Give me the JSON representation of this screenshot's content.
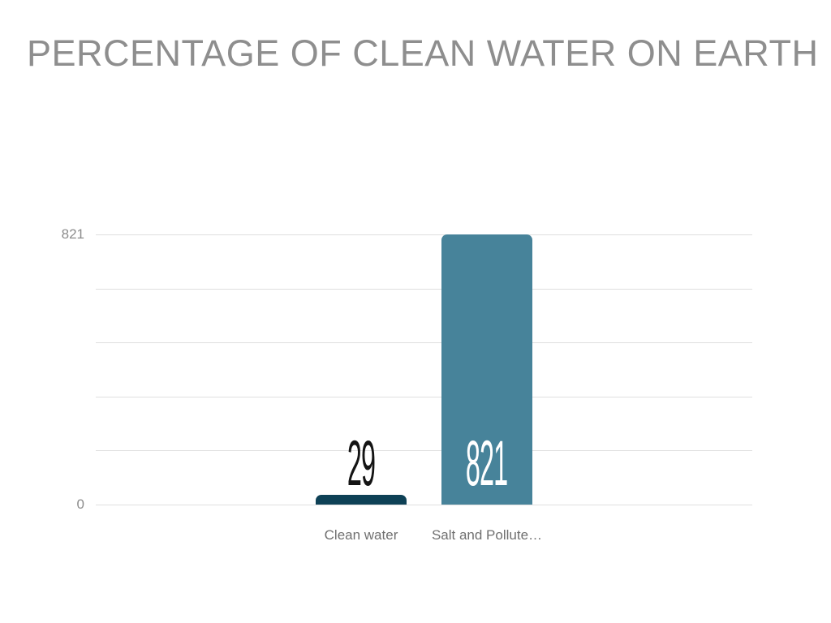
{
  "header": {
    "title": "PERCENTAGE OF CLEAN WATER ON EARTH",
    "title_color": "#8e8e8e"
  },
  "chart_data": {
    "type": "bar",
    "title": "PERCENTAGE OF CLEAN WATER ON EARTH",
    "categories": [
      "Clean water",
      "Salt and Pollute…"
    ],
    "values": [
      29,
      821
    ],
    "value_labels": [
      "29",
      "821"
    ],
    "bar_colors": [
      "#0e4156",
      "#47839a"
    ],
    "value_label_colors": [
      "#141414",
      "#ffffff"
    ],
    "y_ticks": [
      {
        "value": 821,
        "label": "821"
      },
      {
        "value": 0,
        "label": "0"
      }
    ],
    "ylim": [
      0,
      821
    ],
    "gridline_count": 6,
    "grid": true,
    "gridline_color": "#dfdfdf",
    "legend": "none",
    "xlabel": "",
    "ylabel": "",
    "tick_label_color": "#8c8c8c",
    "category_label_color": "#6f6f6f"
  }
}
